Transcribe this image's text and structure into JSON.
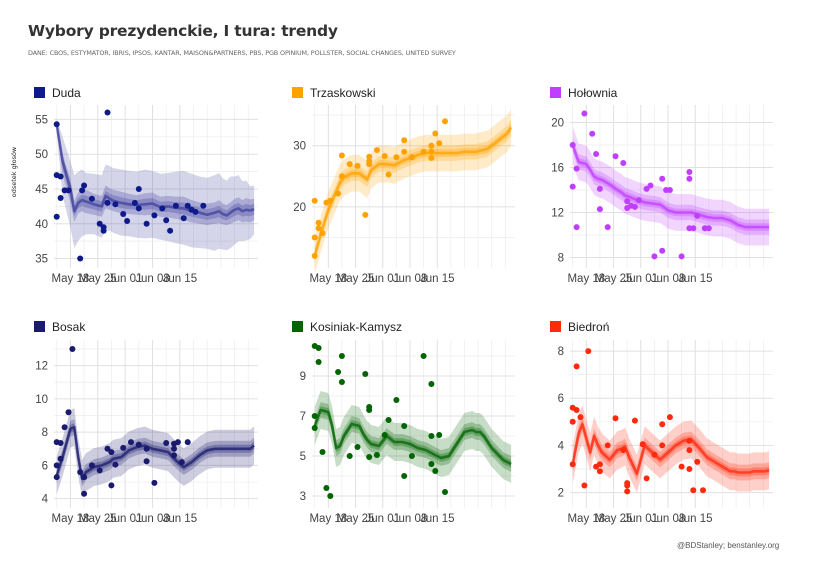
{
  "header": {
    "title": "Wybory prezydenckie, I tura: trendy",
    "subtitle": "DANE: CBOS, ESTYMATOR, IBRIS, IPSOS, KANTAR, MAISON&PARTNERS, PBS, PGB OPINIUM, POLLSTER, SOCIAL CHANGES, UNITED SURVEY",
    "ylabel": "odsetek głosów",
    "credit": "@BDStanley; benstanley.org"
  },
  "chart_data": [
    {
      "type": "line",
      "title": "Duda",
      "color": "#0e1a8a",
      "band_color": "#3f3f9e",
      "ylabel": "odsetek głosów",
      "x_ticks": [
        "May 18",
        "May 25",
        "Jun 01",
        "Jun 08",
        "Jun 15"
      ],
      "y_ticks": [
        35,
        40,
        45,
        50,
        55
      ],
      "ylim": [
        34.5,
        56.5
      ],
      "x_day_range": [
        14.5,
        18.5
      ],
      "trend": {
        "x": [
          14.5,
          16,
          18,
          19,
          20,
          21,
          22,
          24,
          26,
          27,
          28,
          29,
          31,
          33,
          35,
          37,
          39,
          41,
          43,
          45,
          47,
          49,
          51,
          53,
          55,
          56,
          57,
          58,
          59,
          60,
          61,
          62,
          63,
          64,
          65
        ],
        "y": [
          54.3,
          49,
          45,
          41.8,
          43,
          43.4,
          43.2,
          42.8,
          42.5,
          44,
          43.6,
          43.3,
          43,
          42.8,
          42.7,
          42.8,
          42.9,
          42.4,
          42.5,
          42.3,
          42.2,
          41.8,
          41.6,
          41.3,
          41.6,
          41.8,
          41.4,
          41.2,
          41.6,
          42,
          42.2,
          41.8,
          42,
          41.9,
          42.1
        ],
        "lo50": [
          53.5,
          47,
          43,
          40.3,
          41.5,
          41.8,
          41.5,
          41.3,
          41,
          42.2,
          42,
          41.8,
          41.5,
          41.4,
          41.3,
          41.2,
          41.3,
          41,
          40.9,
          40.7,
          40.5,
          40.2,
          40,
          39.8,
          40,
          40.1,
          39.9,
          39.8,
          40,
          40.3,
          40.5,
          40.2,
          40.3,
          40.2,
          40.5
        ],
        "hi50": [
          54.6,
          50,
          46.5,
          43.3,
          44.5,
          44.9,
          44.9,
          44.3,
          44,
          45.5,
          45.1,
          44.9,
          44.6,
          44.3,
          44.1,
          44.4,
          44.5,
          43.9,
          44,
          43.9,
          43.9,
          43.4,
          43.1,
          42.9,
          43.1,
          43.4,
          42.9,
          42.7,
          43.1,
          43.6,
          43.8,
          43.4,
          43.7,
          43.5,
          43.6
        ],
        "lo95": [
          53,
          44,
          39.5,
          36.5,
          37.5,
          38.2,
          38.5,
          38.5,
          38,
          39,
          39,
          38.7,
          38.3,
          38.2,
          38,
          37.9,
          38,
          37.7,
          37.5,
          37.2,
          37,
          36.6,
          36.5,
          36.4,
          36.1,
          36.4,
          36.3,
          36.2,
          36.5,
          37,
          37.5,
          37.5,
          37.6,
          37.8,
          38.5
        ],
        "hi95": [
          55,
          52.5,
          49,
          47,
          47.5,
          47.8,
          47.3,
          47.2,
          47,
          48.5,
          48.3,
          48,
          47.8,
          47.6,
          47.5,
          47.8,
          47.6,
          47.2,
          47.3,
          47.5,
          47.6,
          47.2,
          46.8,
          46.6,
          47,
          47.3,
          46.5,
          46.2,
          46.8,
          46.8,
          47,
          46.1,
          46.2,
          45.4,
          45.5
        ]
      },
      "points": {
        "x": [
          14.5,
          14.5,
          14.5,
          15.5,
          15.5,
          16.5,
          17.5,
          20.5,
          21,
          21.5,
          23.5,
          25.5,
          26.5,
          26.5,
          27.5,
          27.5,
          29.5,
          31.5,
          32.5,
          34.5,
          35.5,
          35.5,
          37.5,
          39.5,
          41.5,
          42.5,
          43.5,
          45,
          47,
          48,
          49,
          50,
          52
        ],
        "y": [
          54.3,
          47,
          41,
          46.8,
          43.7,
          44.8,
          44.8,
          35,
          44.8,
          45.5,
          43.6,
          40,
          39,
          39.5,
          56,
          43,
          42.8,
          41.4,
          40.4,
          43,
          45,
          42.2,
          40,
          41.2,
          42.2,
          40.5,
          39,
          42.6,
          40.8,
          42.6,
          42,
          41.7,
          42.6
        ]
      }
    },
    {
      "type": "line",
      "title": "Trzaskowski",
      "color": "#ffa200",
      "ylabel": "",
      "x_ticks": [
        "May 18",
        "May 25",
        "Jun 01",
        "Jun 08",
        "Jun 15"
      ],
      "y_ticks": [
        20,
        30
      ],
      "ylim": [
        11,
        36
      ],
      "trend": {
        "x": [
          14.5,
          16,
          18,
          19,
          20,
          21,
          22,
          24,
          26,
          27,
          28,
          29,
          31,
          33,
          35,
          37,
          39,
          41,
          43,
          45,
          47,
          49,
          51,
          53,
          55,
          56,
          57,
          58,
          59,
          60,
          61,
          62,
          63,
          64,
          65
        ],
        "y": [
          12,
          15.5,
          19.5,
          21,
          22.5,
          24,
          24.8,
          25.5,
          25.5,
          25,
          24.5,
          26,
          27,
          27,
          26.8,
          27.5,
          28,
          28.5,
          28.8,
          28.8,
          28.8,
          28.8,
          28.8,
          29,
          29,
          29,
          29.2,
          29.3,
          29.5,
          30,
          30.5,
          31,
          31.5,
          32,
          33
        ]
      },
      "points": {
        "x": [
          14.5,
          14.5,
          14.5,
          15.5,
          15.5,
          16.5,
          17.5,
          18.5,
          20.5,
          21.5,
          21.5,
          23.5,
          25.5,
          27.5,
          28.5,
          28.5,
          28.5,
          30.5,
          32.5,
          33.5,
          35.5,
          37.5,
          37.5,
          39.5,
          42.5,
          44.5,
          44.5,
          44.5,
          45.5,
          46.5,
          48
        ],
        "y": [
          12,
          15,
          21,
          16.5,
          17.4,
          15.7,
          20.7,
          21,
          22.2,
          28.4,
          25,
          27,
          26.7,
          18.7,
          27,
          27.5,
          28.2,
          29.3,
          28.3,
          25.3,
          28.1,
          30.9,
          29,
          28.1,
          29,
          30,
          29,
          28,
          32,
          30.4,
          34
        ]
      }
    },
    {
      "type": "line",
      "title": "Hołownia",
      "color": "#c03fff",
      "ylabel": "",
      "x_ticks": [
        "May 18",
        "May 25",
        "Jun 01",
        "Jun 08",
        "Jun 15"
      ],
      "y_ticks": [
        8,
        12,
        16,
        20
      ],
      "ylim": [
        7.6,
        21.2
      ],
      "trend": {
        "x": [
          14.5,
          16,
          18,
          19,
          20,
          21,
          22,
          24,
          26,
          27,
          28,
          29,
          31,
          33,
          35,
          37,
          39,
          41,
          43,
          45,
          47,
          49,
          51,
          53,
          55,
          56,
          57,
          58,
          59,
          60,
          61,
          62,
          63,
          64,
          65
        ],
        "y": [
          18,
          16.5,
          16.3,
          15.8,
          15.2,
          15,
          14.9,
          14.5,
          14,
          13.8,
          13.5,
          13.4,
          13.1,
          12.9,
          12.8,
          12.7,
          12.2,
          12.0,
          12.0,
          12.0,
          11.8,
          11.6,
          11.5,
          11.5,
          11.3,
          11.1,
          10.9,
          10.8,
          10.7,
          10.7,
          10.7,
          10.7,
          10.7,
          10.7,
          10.7
        ]
      },
      "points": {
        "x": [
          14.5,
          14.5,
          15.5,
          15.5,
          17.5,
          19.5,
          20.5,
          21.5,
          21.5,
          23.5,
          25.5,
          27.5,
          28.5,
          28.5,
          29.5,
          30.5,
          31.5,
          33.5,
          34.5,
          35.5,
          37.5,
          37.5,
          38.5,
          39.5,
          42.5,
          44.5,
          44.5,
          44.5,
          45.5,
          46.5,
          48.5,
          48.5,
          49.5
        ],
        "y": [
          18,
          14.3,
          15.9,
          10.7,
          20.8,
          19,
          17.2,
          14.1,
          12.3,
          10.7,
          17,
          16.4,
          13,
          12.4,
          12.6,
          12.5,
          13.1,
          14.1,
          14.4,
          8.1,
          8.6,
          15,
          14,
          14,
          8.1,
          15.6,
          15,
          10.6,
          10.6,
          11.7,
          10.6,
          10.6,
          10.6
        ]
      }
    },
    {
      "type": "line",
      "title": "Bosak",
      "color": "#1a1a6e",
      "ylabel": "",
      "x_ticks": [
        "May 18",
        "May 25",
        "Jun 01",
        "Jun 08",
        "Jun 15"
      ],
      "y_ticks": [
        4,
        6,
        8,
        10,
        12
      ],
      "ylim": [
        3.8,
        13.3
      ],
      "trend": {
        "x": [
          14.5,
          16,
          18,
          19,
          20,
          21,
          22,
          24,
          26,
          27,
          28,
          29,
          31,
          33,
          35,
          37,
          39,
          41,
          43,
          45,
          47,
          49,
          51,
          53,
          55,
          56,
          57,
          58,
          59,
          60,
          61,
          62,
          63,
          64,
          65
        ],
        "y": [
          5.4,
          6.5,
          8.2,
          8.3,
          6.5,
          5.2,
          5.6,
          5.9,
          6,
          6.1,
          6.2,
          6.4,
          6.5,
          6.9,
          7.1,
          7.2,
          7,
          6.9,
          6.8,
          6.3,
          5.9,
          6.2,
          6.6,
          6.9,
          7.0,
          7.0,
          7.0,
          7.0,
          7.0,
          7.0,
          7.0,
          7.0,
          7.0,
          7.0,
          7.2
        ]
      },
      "points": {
        "x": [
          14.5,
          14.5,
          14.5,
          15.5,
          15.5,
          16.5,
          17.5,
          18.5,
          20.5,
          21.5,
          21.5,
          23.5,
          25.5,
          27.5,
          28.5,
          28.5,
          29.5,
          31.5,
          33.5,
          35.5,
          37.5,
          37.5,
          39.5,
          42.5,
          44.5,
          44.5,
          44.5,
          45.5,
          46.5,
          48
        ],
        "y": [
          7.4,
          6,
          5.3,
          7.35,
          6.4,
          8.3,
          9.2,
          13,
          5.6,
          5.3,
          4.3,
          6,
          5.7,
          7,
          4.8,
          6.8,
          6.05,
          7.05,
          7.4,
          7.25,
          7,
          6.25,
          4.95,
          7.35,
          7.3,
          7.0,
          6.6,
          7.4,
          6.2,
          7.4
        ]
      }
    },
    {
      "type": "line",
      "title": "Kosiniak-Kamysz",
      "color": "#006400",
      "ylabel": "",
      "x_ticks": [
        "May 18",
        "May 25",
        "Jun 01",
        "Jun 08",
        "Jun 15"
      ],
      "y_ticks": [
        3,
        5,
        7,
        9
      ],
      "ylim": [
        2.7,
        10.6
      ],
      "trend": {
        "x": [
          14.5,
          16,
          18,
          19,
          20,
          21,
          22,
          24,
          26,
          27,
          28,
          29,
          31,
          33,
          35,
          37,
          39,
          41,
          43,
          45,
          47,
          49,
          51,
          53,
          55,
          56,
          57,
          58,
          59,
          60,
          61,
          62,
          63,
          64,
          65
        ],
        "y": [
          6.5,
          7.3,
          7.2,
          6.5,
          5.4,
          5.5,
          6.0,
          6.6,
          6.5,
          6.1,
          5.8,
          5.6,
          5.5,
          6.0,
          5.7,
          5.7,
          5.6,
          5.4,
          5.3,
          5.1,
          4.9,
          5.0,
          5.6,
          6.2,
          6.3,
          6.2,
          6.2,
          6.0,
          5.7,
          5.4,
          5.2,
          5.0,
          4.8,
          4.7,
          4.6
        ]
      },
      "points": {
        "x": [
          14.5,
          14.5,
          14.5,
          15.5,
          15.5,
          16.5,
          17.5,
          18.5,
          20.5,
          21.5,
          21.5,
          23.5,
          25.5,
          27.5,
          28.5,
          28.5,
          28.5,
          30.5,
          32.5,
          33.5,
          35.5,
          37.5,
          37.5,
          39.5,
          42.5,
          44.5,
          44.5,
          44.5,
          45.5,
          46.5,
          48
        ],
        "y": [
          10.5,
          7,
          6.4,
          10.4,
          9.7,
          5.2,
          3.4,
          3,
          9.2,
          10,
          8.7,
          5,
          5.45,
          9.1,
          7.45,
          7.3,
          4.95,
          5.05,
          6.05,
          6.8,
          7.8,
          6.5,
          4,
          5,
          10,
          8.6,
          6,
          4.6,
          4.25,
          6.05,
          3.2
        ]
      }
    },
    {
      "type": "line",
      "title": "Biedroń",
      "color": "#ff2a0d",
      "ylabel": "",
      "x_ticks": [
        "May 18",
        "May 25",
        "Jun 01",
        "Jun 08",
        "Jun 15"
      ],
      "y_ticks": [
        2,
        4,
        6,
        8
      ],
      "ylim": [
        1.6,
        8.3
      ],
      "trend": {
        "x": [
          14.5,
          16,
          17,
          18,
          19,
          20,
          21,
          22,
          24,
          26,
          27,
          28,
          29,
          31,
          33,
          35,
          37,
          39,
          41,
          43,
          45,
          47,
          49,
          51,
          53,
          55,
          56,
          57,
          58,
          59,
          60,
          61,
          62,
          63,
          64,
          65
        ],
        "y": [
          3.2,
          4.5,
          4.9,
          4.3,
          3.7,
          4.4,
          4.0,
          3.7,
          3.4,
          3.8,
          3.85,
          3.95,
          3.5,
          2.8,
          4.0,
          3.7,
          3.4,
          3.7,
          4.0,
          4.2,
          4.25,
          3.9,
          3.5,
          3.3,
          3.1,
          2.9,
          2.9,
          2.85,
          2.85,
          2.85,
          2.85,
          2.9,
          2.9,
          2.9,
          2.9,
          2.95
        ]
      },
      "points": {
        "x": [
          14.5,
          14.5,
          14.5,
          15.5,
          15.5,
          16.5,
          17.5,
          18.5,
          20.5,
          21.5,
          21.5,
          23.5,
          25.5,
          27.5,
          28.5,
          28.5,
          28.5,
          30.5,
          32.5,
          33.5,
          35.5,
          37.5,
          37.5,
          39.5,
          42.5,
          44.5,
          44.5,
          44.5,
          45.5,
          46.5,
          48
        ],
        "y": [
          5.6,
          5,
          3.2,
          7.35,
          5.5,
          5.2,
          2.3,
          8,
          3.1,
          3.2,
          2.9,
          4,
          5.15,
          3.8,
          2.05,
          2.4,
          2.3,
          5.05,
          4.05,
          2.6,
          3.6,
          4.9,
          4,
          5.2,
          3.1,
          4.2,
          3.8,
          3.0,
          2.1,
          3.3,
          2.1
        ]
      }
    }
  ]
}
